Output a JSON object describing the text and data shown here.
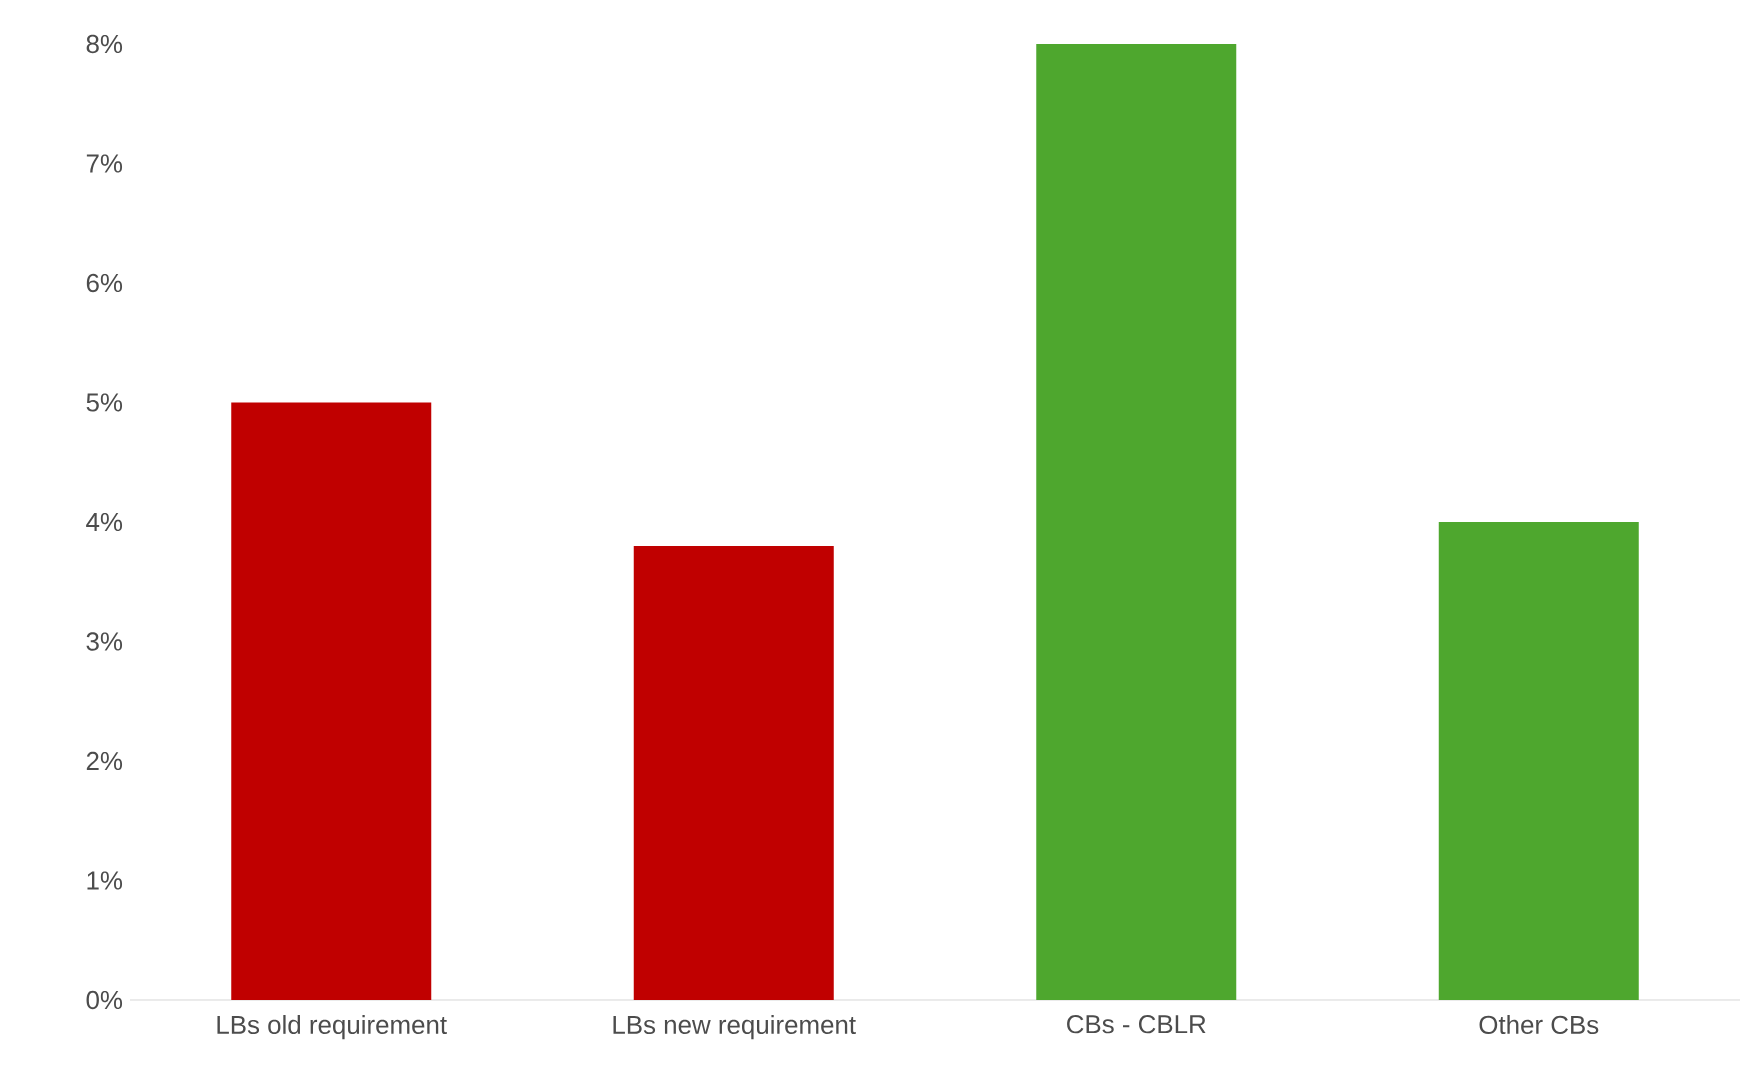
{
  "chart_data": {
    "type": "bar",
    "categories": [
      "LBs old requirement",
      "LBs new requirement",
      "CBs - CBLR",
      "Other CBs"
    ],
    "values": [
      5.0,
      3.8,
      8.0,
      4.0
    ],
    "colors": [
      "#c00000",
      "#c00000",
      "#4ea72e",
      "#4ea72e"
    ],
    "ylim": [
      0,
      8
    ],
    "yticks": [
      {
        "value": 0,
        "label": "0%"
      },
      {
        "value": 1,
        "label": "1%"
      },
      {
        "value": 2,
        "label": "2%"
      },
      {
        "value": 3,
        "label": "3%"
      },
      {
        "value": 4,
        "label": "4%"
      },
      {
        "value": 5,
        "label": "5%"
      },
      {
        "value": 6,
        "label": "6%"
      },
      {
        "value": 7,
        "label": "7%"
      },
      {
        "value": 8,
        "label": "8%"
      }
    ],
    "grid": false
  }
}
